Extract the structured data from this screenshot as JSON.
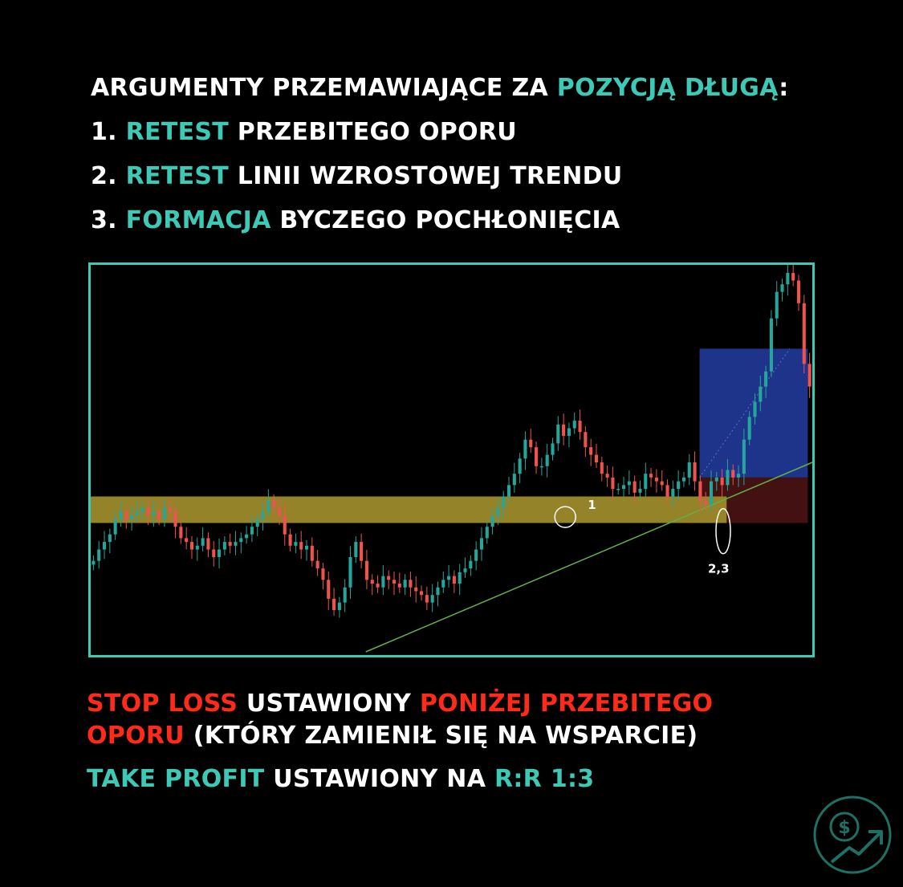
{
  "header": {
    "title_prefix": "ARGUMENTY PRZEMAWIAJĄCE ZA ",
    "title_highlight": "POZYCJĄ DŁUGĄ",
    "title_suffix": ":"
  },
  "arguments": [
    {
      "num": "1. ",
      "highlight": "RETEST",
      "rest": " PRZEBITEGO OPORU"
    },
    {
      "num": "2. ",
      "highlight": "RETEST",
      "rest": " LINII WZROSTOWEJ TRENDU"
    },
    {
      "num": "3. ",
      "highlight": "FORMACJA",
      "rest": " BYCZEGO POCHŁONIĘCIA"
    }
  ],
  "chart_data": {
    "type": "candlestick",
    "grid": false,
    "x_range": [
      0,
      160
    ],
    "y_range": [
      0,
      100
    ],
    "annotations": [
      {
        "label": "1",
        "x": 107,
        "y": 36
      },
      {
        "label": "2,3",
        "x": 139,
        "y": 31
      }
    ],
    "resistance_zone": {
      "x": [
        0,
        141
      ],
      "y": [
        34,
        41
      ]
    },
    "trendline": {
      "from": [
        61,
        0
      ],
      "to": [
        160,
        50
      ]
    },
    "take_profit_zone": {
      "x": [
        135,
        159
      ],
      "y": [
        46,
        80
      ]
    },
    "stop_loss_zone": {
      "x": [
        135,
        159
      ],
      "y": [
        34,
        46
      ]
    },
    "entry_price": 46,
    "close_prices": [
      24,
      27,
      29,
      31,
      35,
      37,
      35,
      36,
      37,
      38,
      36,
      37,
      35,
      38,
      37,
      33,
      30,
      29,
      27,
      28,
      30,
      27,
      25,
      27,
      29,
      28,
      29,
      30,
      31,
      33,
      35,
      37,
      40,
      38,
      36,
      31,
      28,
      29,
      27,
      28,
      24,
      22,
      19,
      14,
      11,
      13,
      17,
      25,
      29,
      24,
      19,
      18,
      17,
      20,
      19,
      18,
      17,
      19,
      17,
      16,
      15,
      13,
      15,
      17,
      19,
      20,
      18,
      21,
      22,
      24,
      27,
      30,
      33,
      36,
      38,
      41,
      44,
      47,
      51,
      56,
      54,
      49,
      49,
      52,
      55,
      60,
      57,
      59,
      61,
      58,
      54,
      52,
      50,
      47,
      46,
      43,
      43,
      44,
      45,
      42,
      43,
      47,
      46,
      45,
      44,
      41,
      43,
      45,
      46,
      50,
      45,
      40,
      39,
      45,
      46,
      44,
      48,
      46,
      47,
      56,
      62,
      66,
      70,
      74,
      88,
      95,
      97,
      100,
      98,
      92,
      76,
      70
    ]
  },
  "footer": {
    "line1_part1": "STOP LOSS",
    "line1_part2": " USTAWIONY ",
    "line1_part3": "PONIŻEJ PRZEBITEGO",
    "line2_part1": "OPORU",
    "line2_part2": " (KTÓRY ZAMIENIŁ SIĘ NA WSPARCIE)",
    "line3_part1": "TAKE PROFIT",
    "line3_part2": " USTAWIONY NA ",
    "line3_part3": "R:R 1:3"
  },
  "logo": {
    "icon": "dollar-growth-icon",
    "color": "#1f6f64"
  },
  "colors": {
    "accent": "#3ec9b6",
    "red": "#ff2a1a",
    "bull_candle": "#26a69a",
    "bear_candle": "#ef5350",
    "resistance_zone": "#9c8a2a",
    "take_profit_zone": "#203a99",
    "stop_loss_zone": "#4a1313",
    "trendline": "#62b04b"
  }
}
